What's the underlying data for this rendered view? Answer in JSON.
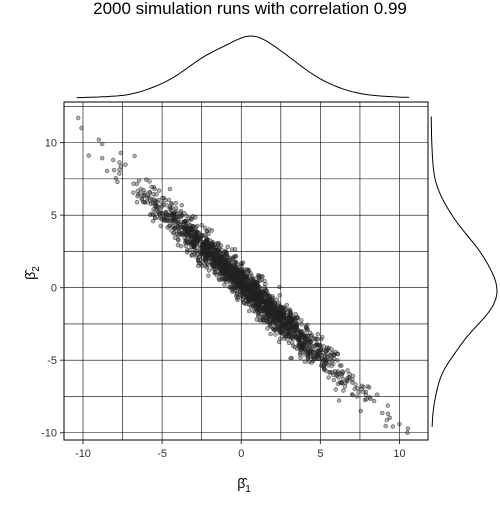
{
  "chart_data": {
    "type": "scatter",
    "title": "2000 simulation runs with correlation 0.99",
    "n_points": 2000,
    "correlation": 0.99,
    "xlabel": {
      "main": "β̂",
      "sub": "1"
    },
    "ylabel": {
      "main": "β̂",
      "sub": "2"
    },
    "xlim": [
      -11.2,
      11.8
    ],
    "ylim": [
      -10.5,
      12.8
    ],
    "xticks": [
      -10,
      -5,
      0,
      5,
      10
    ],
    "yticks": [
      -10,
      -5,
      0,
      5,
      10
    ],
    "grid": true,
    "marginal_density": {
      "top": true,
      "right": true
    },
    "point_color": "#222222",
    "highlight_points": [
      {
        "x": -10.3,
        "y": 11.7
      },
      {
        "x": -9.0,
        "y": 10.2
      },
      {
        "x": 10.5,
        "y": -10.0
      },
      {
        "x": 10.0,
        "y": -9.4
      }
    ]
  }
}
